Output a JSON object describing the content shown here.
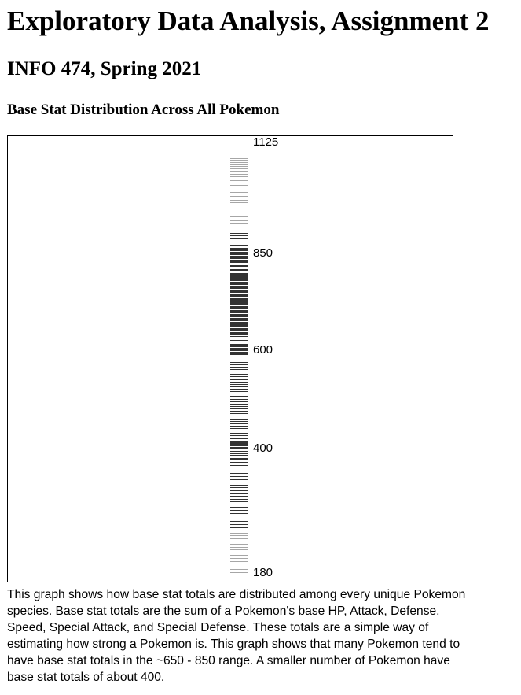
{
  "page": {
    "title": "Exploratory Data Analysis, Assignment 2",
    "subtitle": "INFO 474, Spring 2021",
    "section_heading": "Base Stat Distribution Across All Pokemon",
    "description": "This graph shows how base stat totals are distributed among every unique Pokemon species. Base stat totals are the sum of a Pokemon's base HP, Attack, Defense, Speed, Special Attack, and Special Defense. These totals are a simple way of estimating how strong a Pokemon is. This graph shows that many Pokemon tend to have base stat totals in the ~650 - 850 range. A smaller number of Pokemon have base stat totals of about 400."
  },
  "chart_data": {
    "type": "strip",
    "orientation": "vertical",
    "title": "",
    "xlabel": "",
    "ylabel": "",
    "ylim": [
      180,
      1125
    ],
    "tick_labels": [
      "1125",
      "850",
      "600",
      "400",
      "180"
    ],
    "mark_color": "#000000",
    "values": [
      1125,
      1085,
      1080,
      1075,
      1070,
      1065,
      1058,
      1052,
      1045,
      1040,
      1030,
      1018,
      1000,
      990,
      980,
      975,
      960,
      950,
      940,
      930,
      925,
      915,
      905,
      898,
      892,
      885,
      878,
      870,
      862,
      860,
      855,
      852,
      848,
      845,
      842,
      838,
      835,
      832,
      828,
      825,
      822,
      818,
      815,
      812,
      808,
      805,
      802,
      798,
      795,
      792,
      790,
      788,
      785,
      782,
      780,
      778,
      775,
      772,
      770,
      768,
      765,
      762,
      760,
      758,
      755,
      752,
      750,
      748,
      745,
      742,
      740,
      738,
      735,
      732,
      730,
      728,
      725,
      722,
      720,
      718,
      715,
      712,
      710,
      708,
      705,
      702,
      700,
      698,
      695,
      692,
      690,
      688,
      685,
      682,
      680,
      678,
      675,
      672,
      670,
      668,
      665,
      662,
      660,
      658,
      655,
      652,
      650,
      648,
      645,
      642,
      640,
      635,
      630,
      625,
      620,
      615,
      612,
      608,
      605,
      602,
      600,
      598,
      595,
      592,
      590,
      585,
      580,
      575,
      570,
      565,
      560,
      555,
      550,
      545,
      540,
      535,
      530,
      525,
      520,
      515,
      510,
      505,
      500,
      495,
      490,
      485,
      480,
      475,
      470,
      465,
      460,
      455,
      450,
      445,
      440,
      435,
      430,
      425,
      420,
      415,
      412,
      410,
      408,
      405,
      402,
      400,
      398,
      395,
      392,
      390,
      388,
      385,
      382,
      380,
      375,
      370,
      365,
      360,
      355,
      350,
      345,
      340,
      335,
      330,
      325,
      320,
      315,
      310,
      305,
      300,
      295,
      290,
      285,
      280,
      275,
      270,
      265,
      260,
      255,
      250,
      245,
      240,
      235,
      230,
      225,
      220,
      215,
      210,
      205,
      200,
      195,
      190,
      185,
      180
    ]
  }
}
